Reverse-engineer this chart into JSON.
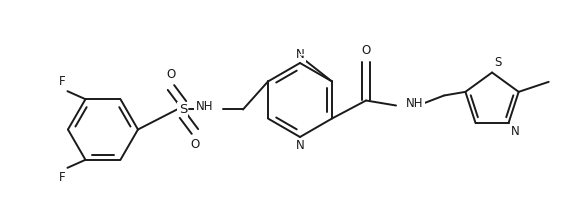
{
  "background_color": "#ffffff",
  "line_color": "#1a1a1a",
  "line_width": 1.4,
  "font_size": 8.5,
  "figsize": [
    5.64,
    2.18
  ],
  "dpi": 100,
  "xlim": [
    0,
    564
  ],
  "ylim": [
    0,
    218
  ]
}
